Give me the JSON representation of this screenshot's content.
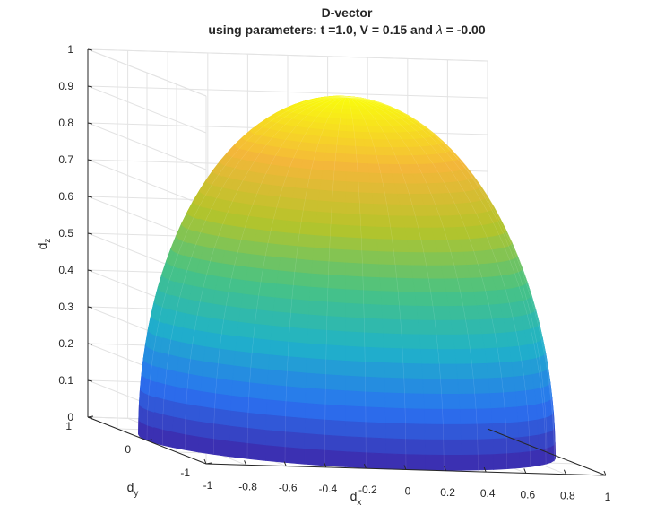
{
  "chart_data": {
    "type": "surface",
    "title": "D-vector",
    "subtitle_prefix": "using parameters: t =1.0, V = 0.15 and ",
    "subtitle_symbol": "λ",
    "subtitle_suffix": " = -0.00",
    "xlabel": {
      "main": "d",
      "sub": "x"
    },
    "ylabel": {
      "main": "d",
      "sub": "y"
    },
    "zlabel": {
      "main": "d",
      "sub": "z"
    },
    "xlim": [
      -1,
      1
    ],
    "ylim": [
      -1,
      1
    ],
    "zlim": [
      0,
      1
    ],
    "x_ticks": [
      "-1",
      "-0.8",
      "-0.6",
      "-0.4",
      "-0.2",
      "0",
      "0.2",
      "0.4",
      "0.6",
      "0.8",
      "1"
    ],
    "y_ticks": [
      "-1",
      "0",
      "1"
    ],
    "z_ticks": [
      "0",
      "0.1",
      "0.2",
      "0.3",
      "0.4",
      "0.5",
      "0.6",
      "0.7",
      "0.8",
      "0.9",
      "1"
    ],
    "grid": true,
    "colormap": "parula",
    "colors": [
      "#3e26a8",
      "#2a72f1",
      "#1fb2c9",
      "#49c383",
      "#b5c42a",
      "#f4b73a",
      "#f9fb0e"
    ],
    "surface": "upper hemisphere, unit radius, z from 0 to ~0.95"
  }
}
